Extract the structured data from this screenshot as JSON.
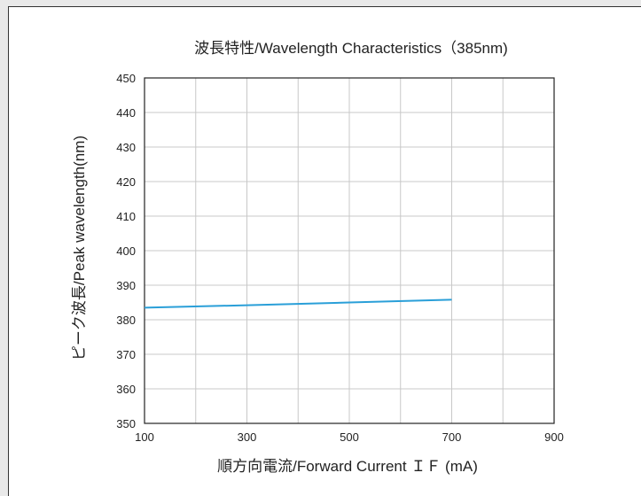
{
  "chart_data": {
    "type": "line",
    "title": "波長特性/Wavelength Characteristics（385nm)",
    "xlabel": "順方向電流/Forward Current ＩＦ (mA)",
    "ylabel": "ピーク波長/Peak wavelength(nm)",
    "xlim": [
      100,
      900
    ],
    "ylim": [
      350,
      450
    ],
    "x_ticks": [
      100,
      300,
      500,
      700,
      900
    ],
    "y_ticks": [
      350,
      360,
      370,
      380,
      390,
      400,
      410,
      420,
      430,
      440,
      450
    ],
    "grid": true,
    "series": [
      {
        "color": "#2a9fd8",
        "x": [
          100,
          300,
          500,
          700
        ],
        "y": [
          383.5,
          384.2,
          385.0,
          385.8
        ]
      }
    ]
  }
}
